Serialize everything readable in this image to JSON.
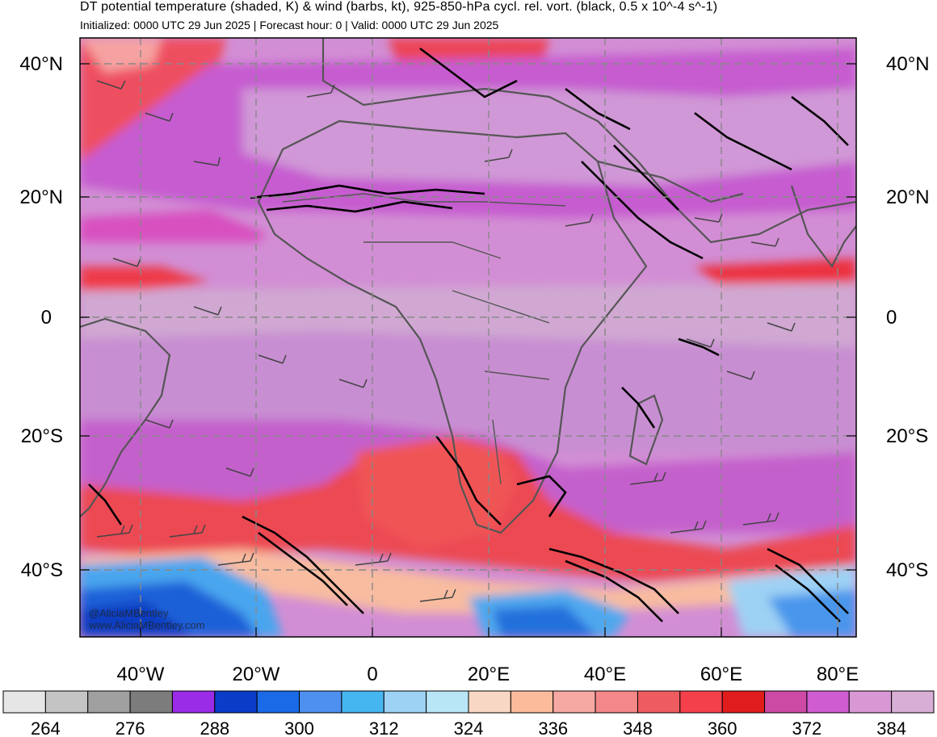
{
  "header": {
    "title": "DT potential temperature (shaded, K) & wind (barbs, kt), 925-850-hPa cycl. rel. vort. (black, 0.5 x 10^-4 s^-1)",
    "subtitle": "Initialized: 0000 UTC 29 Jun 2025 | Forecast hour: 0 | Valid: 0000 UTC 29 Jun 2025"
  },
  "map": {
    "lat_labels": [
      "40°N",
      "20°N",
      "0",
      "20°S",
      "40°S"
    ],
    "lon_labels": [
      "40°W",
      "20°W",
      "0",
      "20°E",
      "40°E",
      "60°E",
      "80°E"
    ],
    "credit_handle": "@AliciaMBentley",
    "credit_site": "www.AliciaMBentley.com",
    "grid_style": "dashed",
    "colors": {
      "background_shading": "#d9a0d8",
      "equatorial_band": "#cfa6d3",
      "subtropical_band": "#c65fcf",
      "warm_band": "#f0404a",
      "southern_cold": "#3a84ea",
      "vorticity_contour": "#000000",
      "coastline": "#555555"
    }
  },
  "colorbar": {
    "labels": [
      "264",
      "276",
      "288",
      "300",
      "312",
      "324",
      "336",
      "348",
      "360",
      "372",
      "384"
    ],
    "colors": [
      "#e6e6e6",
      "#c4c4c4",
      "#a0a0a0",
      "#7c7c7c",
      "#9a2be6",
      "#0a3cc8",
      "#1a6ae8",
      "#4d90f0",
      "#46b6f0",
      "#9ed2f4",
      "#b9e6f6",
      "#f8d8c4",
      "#fcbc9c",
      "#f6a8a2",
      "#f48888",
      "#ee5c60",
      "#f4404a",
      "#e01c1c",
      "#cc4aa4",
      "#cf5cd0",
      "#d898d4",
      "#d8aed4"
    ]
  }
}
